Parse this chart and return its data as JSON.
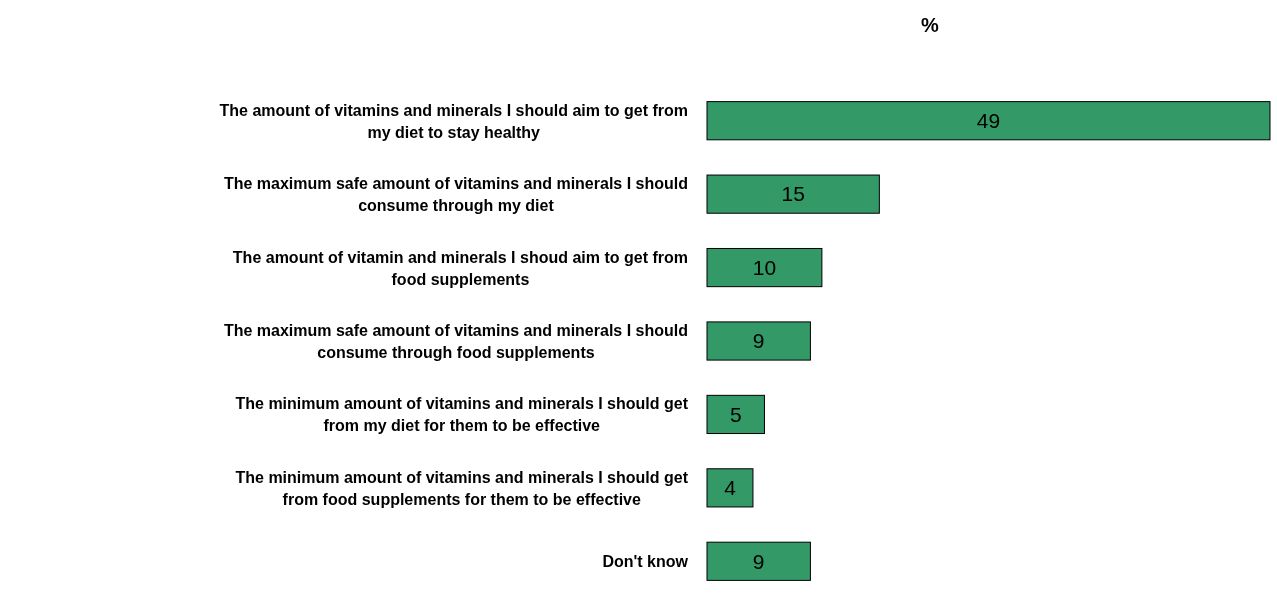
{
  "chart_data": {
    "type": "bar",
    "orientation": "horizontal",
    "title": "%",
    "categories": [
      "The amount of vitamins and minerals I should aim to get from my diet to stay healthy",
      "The maximum safe amount of vitamins and minerals I should consume through my diet",
      "The amount of vitamin and minerals I shoud aim to get from food supplements",
      "The maximum safe amount of vitamins and minerals I should consume through food supplements",
      "The minimum amount of vitamins and minerals I should get from my diet for them to be effective",
      "The minimum amount of vitamins and minerals I should get from food supplements for them to be effective",
      "Don't know"
    ],
    "values": [
      49,
      15,
      10,
      9,
      5,
      4,
      9
    ],
    "color": "#339966",
    "data_labels": true
  }
}
